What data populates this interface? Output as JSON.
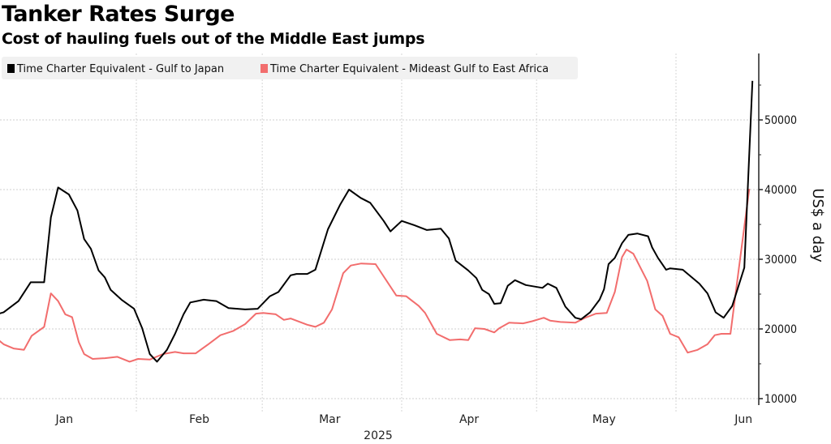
{
  "chart_data": {
    "type": "line",
    "title": "Tanker Rates Surge",
    "subtitle": "Cost of hauling fuels out of the Middle East jumps",
    "xlabel": "2025",
    "ylabel": "US$ a day",
    "x_unit": "day of year 2025 (0 = Jan 1)",
    "xlim": [
      0,
      172
    ],
    "ylim": [
      9000,
      60000
    ],
    "yticks": [
      10000,
      20000,
      30000,
      40000,
      50000
    ],
    "ytick_labels": [
      "10000",
      "20000",
      "30000",
      "40000",
      "50000"
    ],
    "xticks": [
      {
        "label": "Jan",
        "day": 15
      },
      {
        "label": "Feb",
        "day": 45
      },
      {
        "label": "Mar",
        "day": 74
      },
      {
        "label": "Apr",
        "day": 105
      },
      {
        "label": "May",
        "day": 135
      },
      {
        "label": "Jun",
        "day": 166
      }
    ],
    "month_starts": [
      31,
      59,
      90,
      120,
      151
    ],
    "grid": true,
    "legend_position": "top-left",
    "series": [
      {
        "name": "Time Charter Equivalent - Gulf to Japan",
        "color": "#000000",
        "x": [
          0,
          1.5,
          4.8,
          7.5,
          10.5,
          12,
          13.6,
          16,
          17.9,
          19.4,
          20.9,
          22.6,
          24,
          25.3,
          27.7,
          30.5,
          32.3,
          34,
          35.6,
          37.8,
          39.6,
          41.5,
          43,
          46,
          48.8,
          51.5,
          55.2,
          58,
          60.7,
          62.6,
          65.3,
          66.6,
          69,
          70.8,
          73.6,
          76.3,
          78.3,
          80.9,
          83,
          86,
          87.5,
          90,
          92.8,
          95.6,
          98.7,
          100.5,
          102,
          104.8,
          106.6,
          107.9,
          109.4,
          110.6,
          112,
          113.6,
          115.2,
          117.6,
          121.3,
          122.5,
          124.4,
          126.4,
          128.6,
          129.9,
          131.9,
          134,
          135,
          136,
          137.4,
          139,
          140.4,
          142.4,
          144.8,
          145.7,
          147,
          148.8,
          149.7,
          152.5,
          156.2,
          158,
          159.8,
          161.6,
          163.5,
          166.2,
          168
        ],
        "values": [
          22100,
          22400,
          24000,
          26700,
          26700,
          36000,
          40300,
          39300,
          37000,
          32900,
          31500,
          28400,
          27400,
          25600,
          24200,
          22900,
          20100,
          16400,
          15300,
          17000,
          19300,
          22100,
          23800,
          24200,
          24000,
          23000,
          22800,
          22900,
          24700,
          25300,
          27700,
          27900,
          27900,
          28500,
          34300,
          37800,
          40000,
          38800,
          38100,
          35500,
          34000,
          35500,
          34900,
          34200,
          34400,
          33000,
          29800,
          28400,
          27300,
          25600,
          25000,
          23600,
          23700,
          26200,
          27000,
          26300,
          25900,
          26500,
          25900,
          23200,
          21600,
          21400,
          22400,
          24200,
          25700,
          29300,
          30200,
          32300,
          33500,
          33700,
          33300,
          31700,
          30200,
          28500,
          28700,
          28500,
          26500,
          25100,
          22400,
          21600,
          23300,
          28800,
          55600
        ]
      },
      {
        "name": "Time Charter Equivalent - Mideast Gulf to East Africa",
        "color": "#f26d6d",
        "x": [
          0,
          1.5,
          3.7,
          6,
          7.7,
          10.5,
          12,
          13.6,
          15.2,
          16.7,
          18.2,
          19.4,
          21.3,
          24,
          26.8,
          29.5,
          31.4,
          34,
          36.9,
          39.6,
          41.5,
          44.2,
          47,
          49.7,
          52.5,
          55.2,
          57.6,
          59.2,
          62,
          63.8,
          65.3,
          69,
          70.8,
          72.7,
          74.5,
          77,
          78.7,
          81,
          84.2,
          88.8,
          91,
          93.8,
          95.2,
          97.8,
          100.7,
          103,
          104.8,
          106.3,
          108.4,
          110.6,
          111.7,
          113.9,
          117,
          119,
          121.6,
          123,
          125.3,
          128.6,
          130.8,
          133.2,
          135.6,
          137.4,
          139,
          140,
          141.5,
          144.6,
          146.4,
          148,
          149.7,
          151.6,
          153.6,
          155.8,
          158,
          159.6,
          161.1,
          163.1,
          165,
          167.3
        ],
        "values": [
          18600,
          17800,
          17200,
          17000,
          19000,
          20300,
          25100,
          24000,
          22100,
          21700,
          18100,
          16400,
          15700,
          15800,
          16000,
          15300,
          15700,
          15600,
          16400,
          16700,
          16500,
          16500,
          17800,
          19100,
          19700,
          20700,
          22200,
          22300,
          22100,
          21300,
          21500,
          20600,
          20300,
          20900,
          22800,
          28000,
          29100,
          29400,
          29300,
          24800,
          24700,
          23300,
          22300,
          19300,
          18400,
          18500,
          18400,
          20100,
          20000,
          19500,
          20100,
          20900,
          20800,
          21100,
          21600,
          21200,
          21000,
          20900,
          21600,
          22200,
          22300,
          25300,
          30300,
          31400,
          30800,
          26900,
          22800,
          21900,
          19300,
          18800,
          16600,
          17000,
          17800,
          19100,
          19300,
          19300,
          28800,
          40100
        ]
      }
    ]
  }
}
